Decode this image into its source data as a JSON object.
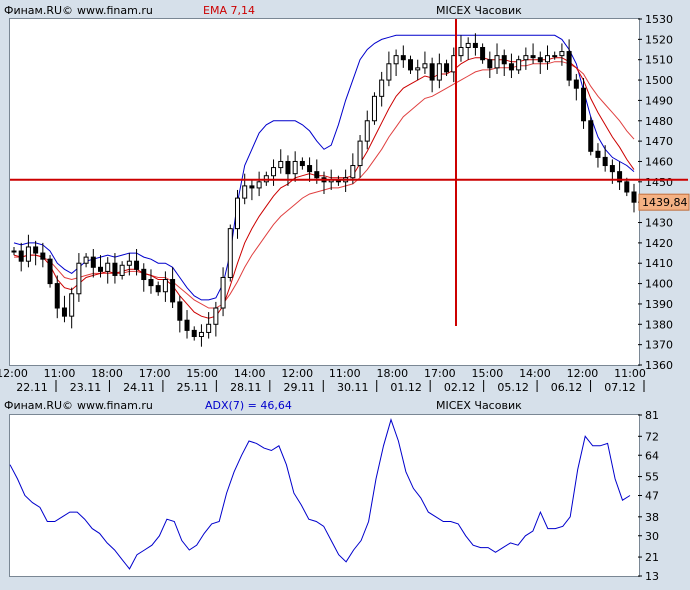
{
  "top_header": {
    "brand": "Финам.RU©",
    "site": "www.finam.ru",
    "indicator": "EMA 7,14",
    "instrument": "MICEX Часовик"
  },
  "bottom_header": {
    "brand": "Финам.RU©",
    "site": "www.finam.ru",
    "indicator": "ADX(7) = 46,64",
    "instrument": "MICEX Часовик"
  },
  "colors": {
    "background": "#d6e0ea",
    "pane": "#ffffff",
    "crosshair": "#cc0000",
    "envelope": "#0000cc",
    "ema_fast": "#cc0000",
    "ema_slow": "#e04040",
    "adx": "#0000cc",
    "price_tag": "#f4b183"
  },
  "chart_data": [
    {
      "type": "candlestick",
      "title": "EMA 7,14",
      "ylim": [
        1360,
        1530
      ],
      "y_ticks": [
        1360,
        1370,
        1380,
        1390,
        1400,
        1410,
        1420,
        1430,
        1440,
        1450,
        1460,
        1470,
        1480,
        1490,
        1500,
        1510,
        1520,
        1530
      ],
      "current_price_label": "1439,84",
      "crosshair_price": 1451,
      "time_ticks": [
        "12:00",
        "11:00",
        "18:00",
        "17:00",
        "15:00",
        "14:00",
        "12:00",
        "11:00",
        "18:00",
        "17:00",
        "15:00",
        "14:00",
        "12:00",
        "11:00"
      ],
      "date_ticks": [
        "22.11",
        "23.11",
        "24.11",
        "25.11",
        "28.11",
        "29.11",
        "30.11",
        "01.12",
        "02.12",
        "05.12",
        "06.12",
        "07.12"
      ],
      "series": [
        {
          "name": "close",
          "values": [
            1416,
            1411,
            1418,
            1415,
            1412,
            1400,
            1388,
            1384,
            1395,
            1410,
            1413,
            1408,
            1406,
            1410,
            1404,
            1409,
            1411,
            1407,
            1402,
            1399,
            1396,
            1402,
            1391,
            1382,
            1377,
            1374,
            1376,
            1380,
            1388,
            1403,
            1427,
            1442,
            1448,
            1447,
            1450,
            1453,
            1457,
            1460,
            1454,
            1460,
            1458,
            1455,
            1452,
            1450,
            1451,
            1450,
            1452,
            1458,
            1470,
            1480,
            1492,
            1500,
            1508,
            1512,
            1510,
            1505,
            1506,
            1508,
            1500,
            1508,
            1504,
            1512,
            1516,
            1518,
            1516,
            1510,
            1506,
            1512,
            1508,
            1505,
            1510,
            1512,
            1511,
            1509,
            1512,
            1512,
            1514,
            1500,
            1496,
            1480,
            1465,
            1462,
            1458,
            1455,
            1450,
            1445,
            1440
          ]
        },
        {
          "name": "ema_fast",
          "values": [
            1414,
            1413,
            1414,
            1414,
            1413,
            1409,
            1402,
            1398,
            1397,
            1400,
            1403,
            1404,
            1405,
            1406,
            1405,
            1406,
            1407,
            1407,
            1405,
            1404,
            1402,
            1402,
            1399,
            1394,
            1390,
            1386,
            1384,
            1383,
            1384,
            1389,
            1399,
            1410,
            1420,
            1427,
            1433,
            1438,
            1443,
            1447,
            1449,
            1452,
            1453,
            1454,
            1453,
            1453,
            1452,
            1452,
            1452,
            1453,
            1459,
            1465,
            1472,
            1479,
            1486,
            1492,
            1496,
            1498,
            1500,
            1502,
            1501,
            1503,
            1503,
            1505,
            1508,
            1510,
            1511,
            1511,
            1510,
            1510,
            1510,
            1509,
            1509,
            1510,
            1510,
            1510,
            1510,
            1511,
            1511,
            1509,
            1506,
            1500,
            1491,
            1484,
            1478,
            1472,
            1467,
            1461,
            1456
          ]
        },
        {
          "name": "ema_slow",
          "values": [
            1413,
            1413,
            1414,
            1414,
            1413,
            1411,
            1407,
            1403,
            1402,
            1403,
            1404,
            1405,
            1405,
            1405,
            1405,
            1405,
            1406,
            1406,
            1405,
            1404,
            1403,
            1403,
            1401,
            1398,
            1395,
            1392,
            1390,
            1388,
            1388,
            1390,
            1395,
            1401,
            1408,
            1414,
            1419,
            1424,
            1429,
            1433,
            1436,
            1439,
            1442,
            1444,
            1445,
            1446,
            1447,
            1447,
            1448,
            1449,
            1452,
            1456,
            1461,
            1466,
            1472,
            1477,
            1482,
            1485,
            1488,
            1491,
            1492,
            1494,
            1496,
            1498,
            1500,
            1502,
            1504,
            1505,
            1505,
            1506,
            1506,
            1506,
            1507,
            1507,
            1508,
            1508,
            1508,
            1509,
            1509,
            1508,
            1506,
            1503,
            1497,
            1492,
            1488,
            1484,
            1480,
            1475,
            1471
          ]
        },
        {
          "name": "envelope",
          "values": [
            1420,
            1419,
            1420,
            1420,
            1419,
            1416,
            1410,
            1407,
            1405,
            1408,
            1411,
            1412,
            1413,
            1414,
            1413,
            1414,
            1415,
            1415,
            1413,
            1412,
            1410,
            1410,
            1408,
            1403,
            1398,
            1394,
            1392,
            1392,
            1393,
            1400,
            1415,
            1440,
            1458,
            1466,
            1474,
            1478,
            1480,
            1480,
            1480,
            1480,
            1478,
            1475,
            1470,
            1466,
            1468,
            1478,
            1490,
            1500,
            1510,
            1515,
            1518,
            1520,
            1521,
            1522,
            1522,
            1522,
            1522,
            1522,
            1522,
            1522,
            1522,
            1522,
            1522,
            1522,
            1522,
            1522,
            1522,
            1522,
            1522,
            1522,
            1522,
            1522,
            1522,
            1522,
            1522,
            1522,
            1520,
            1515,
            1508,
            1495,
            1482,
            1472,
            1466,
            1462,
            1460,
            1458,
            1455
          ]
        }
      ]
    },
    {
      "type": "line",
      "title": "ADX(7) = 46,64",
      "ylim": [
        13,
        81
      ],
      "y_ticks": [
        13,
        21,
        30,
        38,
        47,
        55,
        64,
        72,
        81
      ],
      "series": [
        {
          "name": "ADX(7)",
          "values": [
            60,
            54,
            47,
            44,
            42,
            36,
            36,
            38,
            40,
            40,
            37,
            33,
            31,
            27,
            24,
            20,
            16,
            22,
            24,
            26,
            30,
            37,
            36,
            28,
            24,
            26,
            31,
            35,
            36,
            48,
            57,
            64,
            70,
            69,
            67,
            66,
            68,
            60,
            48,
            43,
            37,
            36,
            34,
            28,
            22,
            19,
            24,
            28,
            36,
            54,
            68,
            79,
            70,
            57,
            50,
            46,
            40,
            38,
            36,
            36,
            35,
            30,
            26,
            25,
            25,
            23,
            25,
            27,
            26,
            30,
            32,
            40,
            33,
            33,
            34,
            38,
            58,
            72,
            68,
            68,
            69,
            54,
            45,
            47
          ]
        }
      ]
    }
  ]
}
